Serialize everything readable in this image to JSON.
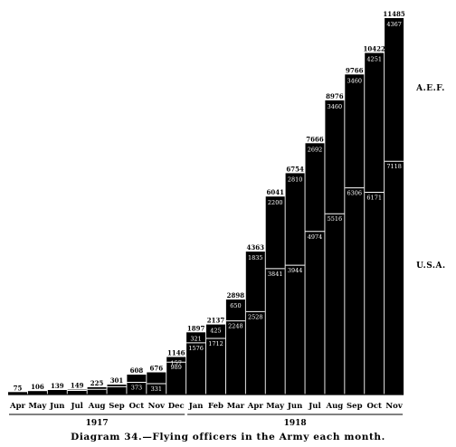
{
  "chart_data": {
    "type": "bar",
    "title": "",
    "xlabel": "",
    "ylabel": "",
    "grid": false,
    "stacked": true,
    "categories": [
      "Apr",
      "May",
      "Jun",
      "Jul",
      "Aug",
      "Sep",
      "Oct",
      "Nov",
      "Dec",
      "Jan",
      "Feb",
      "Mar",
      "Apr",
      "May",
      "Jun",
      "Jul",
      "Aug",
      "Sep",
      "Oct",
      "Nov"
    ],
    "year_groups": [
      {
        "label": "1917",
        "start": 0,
        "end": 8
      },
      {
        "label": "1918",
        "start": 9,
        "end": 19
      }
    ],
    "totals": [
      75,
      106,
      139,
      149,
      225,
      301,
      608,
      676,
      1146,
      1897,
      2137,
      2898,
      4363,
      6041,
      6754,
      7666,
      8976,
      9766,
      10422,
      11485
    ],
    "total_labels": [
      "75",
      "106",
      "139",
      "149",
      "225",
      "301",
      "608",
      "676",
      "1146",
      "1897",
      "2137",
      "2898",
      "4363",
      "6041",
      "6754",
      "7666",
      "8976",
      "9766",
      "10422",
      "11485"
    ],
    "series": [
      {
        "name": "U.S.A.",
        "values": [
          75,
          106,
          139,
          123,
          157,
          237,
          373,
          331,
          989,
          1576,
          1712,
          2248,
          2528,
          3841,
          3944,
          4974,
          5516,
          6306,
          6171,
          7118
        ],
        "labels": [
          "",
          "",
          "",
          "",
          "",
          "",
          "373",
          "331",
          "989",
          "1576",
          "1712",
          "2248",
          "2528",
          "3841",
          "3944",
          "4974",
          "5516",
          "6306",
          "6171",
          "7118"
        ]
      },
      {
        "name": "A.E.F.",
        "values": [
          0,
          0,
          0,
          26,
          68,
          64,
          235,
          345,
          157,
          321,
          425,
          650,
          1835,
          2200,
          2810,
          2692,
          3460,
          3460,
          4251,
          4367
        ],
        "labels": [
          "",
          "",
          "",
          "",
          "",
          "",
          "",
          "",
          "157",
          "321",
          "425",
          "650",
          "1835",
          "2200",
          "2810",
          "2692",
          "3460",
          "3460",
          "4251",
          "4367"
        ]
      }
    ],
    "series_labels": [
      {
        "text": "A.E.F.",
        "series": "A.E.F."
      },
      {
        "text": "U.S.A.",
        "series": "U.S.A."
      }
    ],
    "ylim": [
      0,
      11485
    ]
  },
  "caption": "Diagram 34.—Flying officers in the Army each month."
}
